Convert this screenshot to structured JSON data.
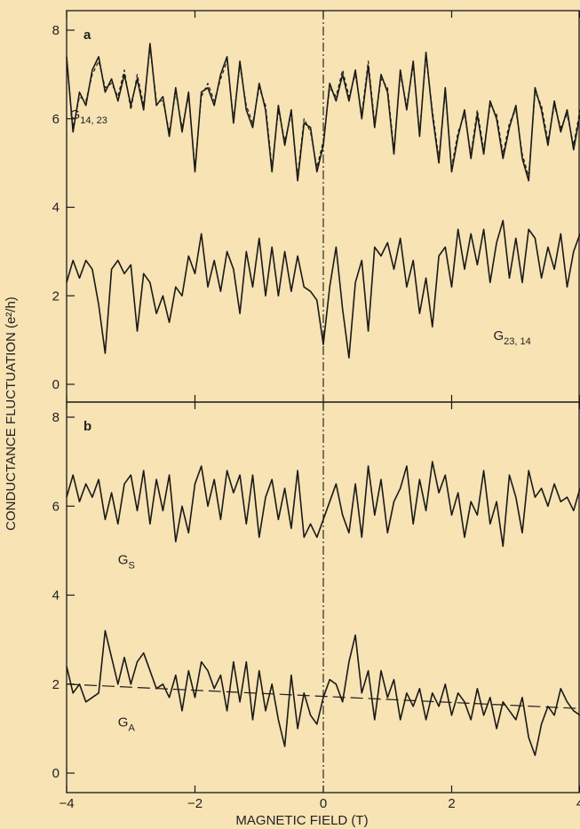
{
  "chart_data": [
    {
      "panel_label": "a",
      "type": "line",
      "xlim": [
        -4,
        4
      ],
      "ylim": [
        0,
        8
      ],
      "x_ticks": [
        "−4",
        "−2",
        "0",
        "2",
        "4"
      ],
      "y_ticks": [
        "0",
        "2",
        "4",
        "6",
        "8"
      ],
      "reference_line_x": 0,
      "series": [
        {
          "name": "G14,23",
          "name_main": "G",
          "name_sub": "14, 23",
          "color": "#1a1a1a",
          "x": [
            -4.0,
            -3.9,
            -3.8,
            -3.7,
            -3.6,
            -3.5,
            -3.4,
            -3.3,
            -3.2,
            -3.1,
            -3.0,
            -2.9,
            -2.8,
            -2.7,
            -2.6,
            -2.5,
            -2.4,
            -2.3,
            -2.2,
            -2.1,
            -2.0,
            -1.9,
            -1.8,
            -1.7,
            -1.6,
            -1.5,
            -1.4,
            -1.3,
            -1.2,
            -1.1,
            -1.0,
            -0.9,
            -0.8,
            -0.7,
            -0.6,
            -0.5,
            -0.4,
            -0.3,
            -0.2,
            -0.1,
            0.0,
            0.1,
            0.2,
            0.3,
            0.4,
            0.5,
            0.6,
            0.7,
            0.8,
            0.9,
            1.0,
            1.1,
            1.2,
            1.3,
            1.4,
            1.5,
            1.6,
            1.7,
            1.8,
            1.9,
            2.0,
            2.1,
            2.2,
            2.3,
            2.4,
            2.5,
            2.6,
            2.7,
            2.8,
            2.9,
            3.0,
            3.1,
            3.2,
            3.3,
            3.4,
            3.5,
            3.6,
            3.7,
            3.8,
            3.9,
            4.0
          ],
          "values": [
            7.4,
            5.7,
            6.6,
            6.3,
            7.1,
            7.4,
            6.6,
            6.9,
            6.4,
            7.0,
            6.3,
            6.9,
            6.2,
            7.7,
            6.3,
            6.5,
            5.6,
            6.7,
            5.7,
            6.6,
            4.8,
            6.6,
            6.7,
            6.3,
            7.0,
            7.4,
            5.9,
            7.3,
            6.2,
            5.8,
            6.8,
            6.2,
            4.8,
            6.3,
            5.4,
            6.2,
            4.6,
            5.9,
            5.8,
            4.8,
            5.4,
            6.8,
            6.4,
            7.0,
            6.4,
            7.1,
            6.0,
            7.2,
            5.8,
            7.0,
            6.6,
            5.2,
            7.1,
            6.2,
            7.3,
            5.6,
            7.5,
            6.1,
            5.0,
            6.7,
            4.8,
            5.6,
            6.2,
            5.1,
            6.1,
            5.2,
            6.4,
            6.0,
            5.1,
            5.8,
            6.3,
            5.1,
            4.6,
            6.7,
            6.2,
            5.4,
            6.4,
            5.7,
            6.2,
            5.3,
            6.1
          ]
        },
        {
          "name": "G23,14",
          "name_main": "G",
          "name_sub": "23, 14",
          "color": "#1a1a1a",
          "x": [
            -4.0,
            -3.9,
            -3.8,
            -3.7,
            -3.6,
            -3.5,
            -3.4,
            -3.3,
            -3.2,
            -3.1,
            -3.0,
            -2.9,
            -2.8,
            -2.7,
            -2.6,
            -2.5,
            -2.4,
            -2.3,
            -2.2,
            -2.1,
            -2.0,
            -1.9,
            -1.8,
            -1.7,
            -1.6,
            -1.5,
            -1.4,
            -1.3,
            -1.2,
            -1.1,
            -1.0,
            -0.9,
            -0.8,
            -0.7,
            -0.6,
            -0.5,
            -0.4,
            -0.3,
            -0.2,
            -0.1,
            0.0,
            0.1,
            0.2,
            0.3,
            0.4,
            0.5,
            0.6,
            0.7,
            0.8,
            0.9,
            1.0,
            1.1,
            1.2,
            1.3,
            1.4,
            1.5,
            1.6,
            1.7,
            1.8,
            1.9,
            2.0,
            2.1,
            2.2,
            2.3,
            2.4,
            2.5,
            2.6,
            2.7,
            2.8,
            2.9,
            3.0,
            3.1,
            3.2,
            3.3,
            3.4,
            3.5,
            3.6,
            3.7,
            3.8,
            3.9,
            4.0
          ],
          "values": [
            2.3,
            2.8,
            2.4,
            2.8,
            2.6,
            1.8,
            0.7,
            2.6,
            2.8,
            2.5,
            2.7,
            1.2,
            2.5,
            2.3,
            1.6,
            2.0,
            1.4,
            2.2,
            2.0,
            2.9,
            2.5,
            3.4,
            2.2,
            2.8,
            2.1,
            3.0,
            2.6,
            1.6,
            3.0,
            2.2,
            3.3,
            2.0,
            3.1,
            2.0,
            3.0,
            2.1,
            2.9,
            2.2,
            2.1,
            1.9,
            0.9,
            2.2,
            3.1,
            1.7,
            0.6,
            2.3,
            2.8,
            1.2,
            3.1,
            2.9,
            3.2,
            2.6,
            3.3,
            2.2,
            2.8,
            1.6,
            2.4,
            1.3,
            2.9,
            3.1,
            2.2,
            3.5,
            2.6,
            3.4,
            2.7,
            3.5,
            2.3,
            3.2,
            3.7,
            2.4,
            3.3,
            2.3,
            3.5,
            3.3,
            2.4,
            3.1,
            2.6,
            3.4,
            2.2,
            3.0,
            3.4
          ]
        },
        {
          "name": "G14,23 (dashed)",
          "color": "#1a1a1a",
          "dashed": true,
          "x": [
            -4.0,
            -3.9,
            -3.8,
            -3.7,
            -3.6,
            -3.5,
            -3.4,
            -3.3,
            -3.2,
            -3.1,
            -3.0,
            -2.9,
            -2.8,
            -2.7,
            -2.6,
            -2.5,
            -2.4,
            -2.3,
            -2.2,
            -2.1,
            -2.0,
            -1.9,
            -1.8,
            -1.7,
            -1.6,
            -1.5,
            -1.4,
            -1.3,
            -1.2,
            -1.1,
            -1.0,
            -0.9,
            -0.8,
            -0.7,
            -0.6,
            -0.5,
            -0.4,
            -0.3,
            -0.2,
            -0.1,
            0.0,
            0.1,
            0.2,
            0.3,
            0.4,
            0.5,
            0.6,
            0.7,
            0.8,
            0.9,
            1.0,
            1.1,
            1.2,
            1.3,
            1.4,
            1.5,
            1.6,
            1.7,
            1.8,
            1.9,
            2.0,
            2.1,
            2.2,
            2.3,
            2.4,
            2.5,
            2.6,
            2.7,
            2.8,
            2.9,
            3.0,
            3.1,
            3.2,
            3.3,
            3.4,
            3.5,
            3.6,
            3.7,
            3.8,
            3.9,
            4.0
          ],
          "values": [
            7.3,
            5.8,
            6.5,
            6.4,
            7.0,
            7.3,
            6.7,
            6.8,
            6.5,
            7.1,
            6.2,
            7.0,
            6.3,
            7.6,
            6.4,
            6.4,
            5.7,
            6.6,
            5.8,
            6.5,
            4.9,
            6.5,
            6.8,
            6.4,
            6.9,
            7.3,
            6.0,
            7.2,
            6.3,
            5.9,
            6.7,
            6.3,
            4.9,
            6.2,
            5.5,
            6.1,
            4.7,
            6.0,
            5.7,
            4.9,
            5.5,
            6.7,
            6.5,
            7.1,
            6.5,
            7.0,
            6.1,
            7.3,
            5.9,
            6.9,
            6.7,
            5.3,
            7.0,
            6.3,
            7.2,
            5.7,
            7.4,
            6.2,
            5.1,
            6.6,
            4.9,
            5.7,
            6.1,
            5.2,
            6.2,
            5.3,
            6.3,
            6.1,
            5.2,
            5.9,
            6.2,
            5.2,
            4.7,
            6.6,
            6.3,
            5.5,
            6.3,
            5.8,
            6.1,
            5.4,
            6.2
          ]
        }
      ]
    },
    {
      "panel_label": "b",
      "type": "line",
      "xlim": [
        -4,
        4
      ],
      "ylim": [
        0,
        8
      ],
      "xlabel": "MAGNETIC FIELD (T)",
      "x_ticks": [
        "−4",
        "−2",
        "0",
        "2",
        "4"
      ],
      "y_ticks": [
        "0",
        "2",
        "4",
        "6",
        "8"
      ],
      "reference_line_x": 0,
      "series": [
        {
          "name": "GS",
          "name_main": "G",
          "name_sub": "S",
          "color": "#1a1a1a",
          "x": [
            -4.0,
            -3.9,
            -3.8,
            -3.7,
            -3.6,
            -3.5,
            -3.4,
            -3.3,
            -3.2,
            -3.1,
            -3.0,
            -2.9,
            -2.8,
            -2.7,
            -2.6,
            -2.5,
            -2.4,
            -2.3,
            -2.2,
            -2.1,
            -2.0,
            -1.9,
            -1.8,
            -1.7,
            -1.6,
            -1.5,
            -1.4,
            -1.3,
            -1.2,
            -1.1,
            -1.0,
            -0.9,
            -0.8,
            -0.7,
            -0.6,
            -0.5,
            -0.4,
            -0.3,
            -0.2,
            -0.1,
            0.0,
            0.1,
            0.2,
            0.3,
            0.4,
            0.5,
            0.6,
            0.7,
            0.8,
            0.9,
            1.0,
            1.1,
            1.2,
            1.3,
            1.4,
            1.5,
            1.6,
            1.7,
            1.8,
            1.9,
            2.0,
            2.1,
            2.2,
            2.3,
            2.4,
            2.5,
            2.6,
            2.7,
            2.8,
            2.9,
            3.0,
            3.1,
            3.2,
            3.3,
            3.4,
            3.5,
            3.6,
            3.7,
            3.8,
            3.9,
            4.0
          ],
          "values": [
            6.2,
            6.7,
            6.1,
            6.5,
            6.2,
            6.6,
            5.7,
            6.3,
            5.6,
            6.5,
            6.7,
            5.9,
            6.8,
            5.6,
            6.6,
            5.9,
            6.7,
            5.2,
            6.0,
            5.4,
            6.5,
            6.9,
            6.0,
            6.6,
            5.7,
            6.8,
            6.3,
            6.7,
            5.6,
            6.7,
            5.3,
            6.2,
            6.6,
            5.7,
            6.4,
            5.5,
            6.8,
            5.3,
            5.6,
            5.3,
            5.7,
            6.1,
            6.5,
            5.8,
            5.4,
            6.5,
            5.3,
            6.9,
            5.8,
            6.6,
            5.4,
            6.1,
            6.4,
            6.9,
            5.6,
            6.6,
            5.9,
            7.0,
            6.3,
            6.7,
            5.8,
            6.3,
            5.3,
            6.1,
            5.8,
            6.8,
            5.6,
            6.1,
            5.1,
            6.7,
            6.2,
            5.4,
            6.8,
            6.2,
            6.4,
            6.0,
            6.5,
            6.1,
            6.2,
            5.9,
            6.4
          ]
        },
        {
          "name": "GA",
          "name_main": "G",
          "name_sub": "A",
          "color": "#1a1a1a",
          "x": [
            -4.0,
            -3.9,
            -3.8,
            -3.7,
            -3.6,
            -3.5,
            -3.4,
            -3.3,
            -3.2,
            -3.1,
            -3.0,
            -2.9,
            -2.8,
            -2.7,
            -2.6,
            -2.5,
            -2.4,
            -2.3,
            -2.2,
            -2.1,
            -2.0,
            -1.9,
            -1.8,
            -1.7,
            -1.6,
            -1.5,
            -1.4,
            -1.3,
            -1.2,
            -1.1,
            -1.0,
            -0.9,
            -0.8,
            -0.7,
            -0.6,
            -0.5,
            -0.4,
            -0.3,
            -0.2,
            -0.1,
            0.0,
            0.1,
            0.2,
            0.3,
            0.4,
            0.5,
            0.6,
            0.7,
            0.8,
            0.9,
            1.0,
            1.1,
            1.2,
            1.3,
            1.4,
            1.5,
            1.6,
            1.7,
            1.8,
            1.9,
            2.0,
            2.1,
            2.2,
            2.3,
            2.4,
            2.5,
            2.6,
            2.7,
            2.8,
            2.9,
            3.0,
            3.1,
            3.2,
            3.3,
            3.4,
            3.5,
            3.6,
            3.7,
            3.8,
            3.9,
            4.0
          ],
          "values": [
            2.4,
            1.8,
            2.0,
            1.6,
            1.7,
            1.8,
            3.2,
            2.6,
            2.0,
            2.6,
            2.0,
            2.5,
            2.7,
            2.3,
            1.9,
            2.0,
            1.7,
            2.2,
            1.4,
            2.3,
            1.7,
            2.5,
            2.3,
            1.9,
            2.2,
            1.4,
            2.5,
            1.6,
            2.5,
            1.2,
            2.3,
            1.4,
            2.0,
            1.2,
            0.6,
            2.2,
            1.0,
            1.8,
            1.3,
            1.1,
            1.7,
            2.1,
            2.0,
            1.6,
            2.5,
            3.1,
            1.8,
            2.3,
            1.2,
            2.3,
            1.7,
            2.1,
            1.2,
            1.8,
            1.5,
            1.9,
            1.2,
            1.8,
            1.5,
            2.0,
            1.3,
            1.8,
            1.6,
            1.2,
            1.9,
            1.3,
            1.7,
            1.0,
            1.6,
            1.4,
            1.2,
            1.7,
            0.8,
            0.4,
            1.1,
            1.5,
            1.3,
            1.9,
            1.6,
            1.4,
            1.3
          ]
        },
        {
          "name": "GA fit",
          "color": "#1a1a1a",
          "dashed": true,
          "x": [
            -4,
            4
          ],
          "values": [
            2.0,
            1.45
          ]
        }
      ]
    }
  ],
  "ylabel_shared": "CONDUCTANCE FLUCTUATION (e²/h)"
}
